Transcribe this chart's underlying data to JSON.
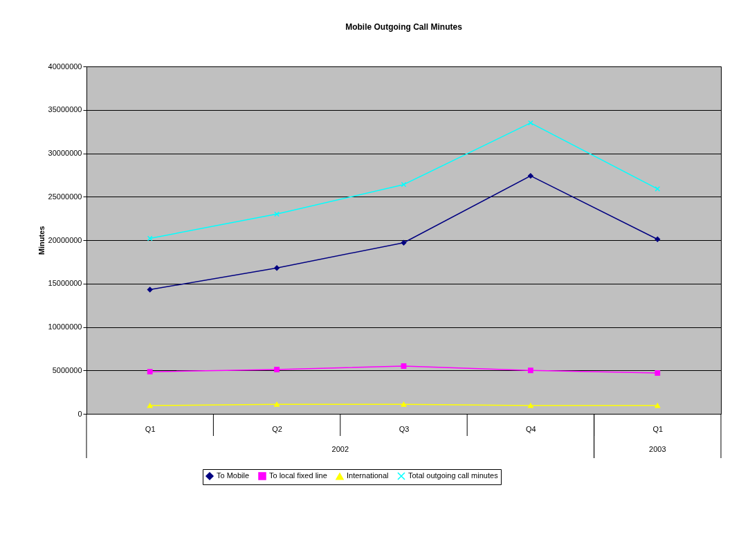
{
  "chart_data": {
    "type": "line",
    "title": "Mobile Outgoing Call Minutes",
    "ylabel": "Minutes",
    "categories": [
      "Q1",
      "Q2",
      "Q3",
      "Q4",
      "Q1"
    ],
    "annotations": [
      "2002",
      "2003"
    ],
    "series": [
      {
        "name": "To Mobile",
        "color": "#000080",
        "marker": "diamond",
        "values": [
          14300000,
          16800000,
          19700000,
          27400000,
          20100000
        ]
      },
      {
        "name": "To local fixed line",
        "color": "#ff00ff",
        "marker": "square",
        "values": [
          4850000,
          5100000,
          5500000,
          5000000,
          4700000
        ]
      },
      {
        "name": "International",
        "color": "#ffff00",
        "marker": "triangle",
        "values": [
          950000,
          1100000,
          1100000,
          950000,
          950000
        ]
      },
      {
        "name": "Total outgoing call minutes",
        "color": "#00ffff",
        "marker": "cross",
        "values": [
          20200000,
          23000000,
          26400000,
          33500000,
          25900000
        ]
      }
    ],
    "ylim": [
      0,
      40000000
    ],
    "yticks": [
      0,
      5000000,
      10000000,
      15000000,
      20000000,
      25000000,
      30000000,
      35000000,
      40000000
    ],
    "grid": "y",
    "legend": "bottom"
  }
}
